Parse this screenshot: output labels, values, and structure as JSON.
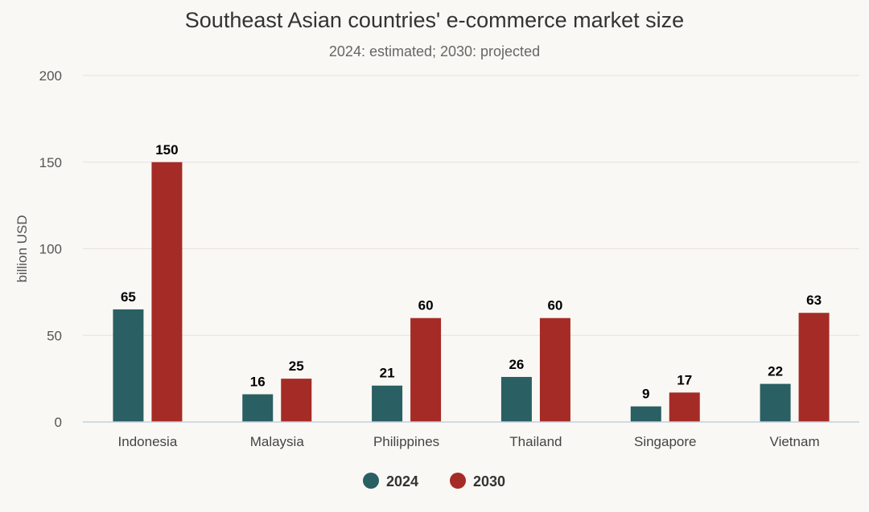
{
  "chart_data": {
    "type": "bar",
    "title": "Southeast Asian countries' e-commerce market size",
    "subtitle": "2024: estimated; 2030: projected",
    "xlabel": "",
    "ylabel": "billion USD",
    "ylim": [
      0,
      200
    ],
    "yticks": [
      0,
      50,
      100,
      150,
      200
    ],
    "grid": true,
    "legend_position": "bottom-center",
    "categories": [
      "Indonesia",
      "Malaysia",
      "Philippines",
      "Thailand",
      "Singapore",
      "Vietnam"
    ],
    "series": [
      {
        "name": "2024",
        "color": "#2a5f63",
        "values": [
          65,
          16,
          21,
          26,
          9,
          22
        ]
      },
      {
        "name": "2030",
        "color": "#a52b26",
        "values": [
          150,
          25,
          60,
          60,
          17,
          63
        ]
      }
    ]
  }
}
